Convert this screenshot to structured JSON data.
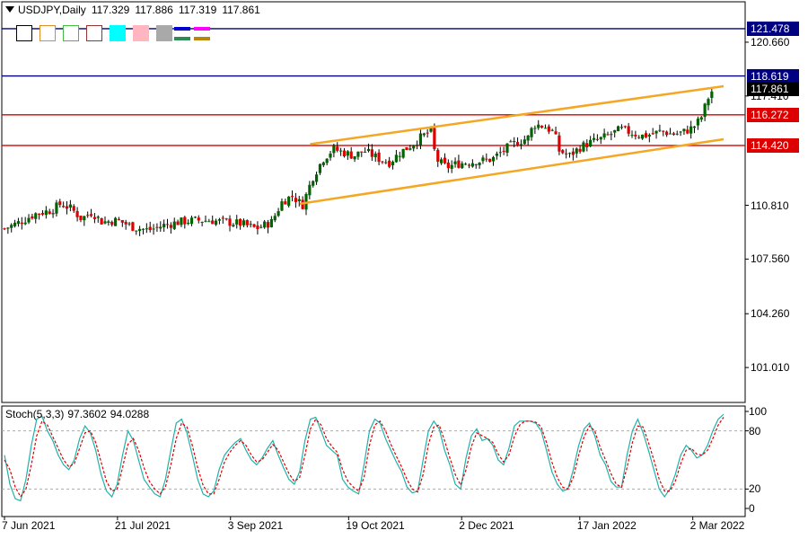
{
  "header": {
    "symbol": "USDJPY,Daily",
    "open": "117.329",
    "high": "117.886",
    "low": "117.319",
    "close": "117.861"
  },
  "swatches": [
    {
      "name": "black-box-swatch",
      "border": "#000000",
      "fill": "#ffffff"
    },
    {
      "name": "orange-box-swatch",
      "border": "#e08a2a",
      "fill": "#ffffff"
    },
    {
      "name": "green-box-swatch",
      "border": "#44bb44",
      "fill": "#ffffff"
    },
    {
      "name": "maroon-box-swatch",
      "border": "#993333",
      "fill": "#ffffff"
    },
    {
      "name": "cyan-swatch",
      "border": "#00ffff",
      "fill": "#00ffff"
    },
    {
      "name": "pink-swatch",
      "border": "#ffb6c1",
      "fill": "#ffb6c1"
    },
    {
      "name": "gray-swatch",
      "border": "#a9a9a9",
      "fill": "#a9a9a9"
    }
  ],
  "line_swatches": [
    {
      "name": "blue-line-swatch",
      "color": "#0000cc"
    },
    {
      "name": "magenta-line-swatch",
      "color": "#ff00ff"
    },
    {
      "name": "teal-line-swatch",
      "color": "#2e8b57"
    },
    {
      "name": "olive-line-swatch",
      "color": "#b8860b"
    }
  ],
  "colors": {
    "bull": "#006400",
    "bear": "#dd0000",
    "support_resistance": "#dd0000",
    "channel": "#f5a623",
    "blue_level": "#000080",
    "stoch_main": "#20b2aa",
    "stoch_signal": "#dd0000",
    "current_price_tag": "#000000"
  },
  "chart_data": [
    {
      "type": "candlestick",
      "y_axis_ticks": [
        "120.660",
        "117.410",
        "110.810",
        "107.560",
        "104.260",
        "101.010"
      ],
      "y_tick_values": [
        120.66,
        117.41,
        110.81,
        107.56,
        104.26,
        101.01
      ],
      "ylim": [
        98.9,
        123.1
      ],
      "x_axis_labels": [
        "7 Jun 2021",
        "21 Jul 2021",
        "3 Sep 2021",
        "19 Oct 2021",
        "2 Dec 2021",
        "17 Jan 2022",
        "2 Mar 2022"
      ],
      "x_label_days": [
        0,
        44,
        88,
        134,
        178,
        224,
        268
      ],
      "x_domain_days": [
        0,
        280
      ],
      "horizontal_levels": [
        {
          "value": 121.478,
          "label": "121.478",
          "color": "#000080"
        },
        {
          "value": 118.619,
          "label": "118.619",
          "color": "#000080"
        },
        {
          "value": 116.272,
          "label": "116.272",
          "color": "#dd0000"
        },
        {
          "value": 114.42,
          "label": "114.420",
          "color": "#dd0000"
        }
      ],
      "current_price": {
        "value": 117.861,
        "label": "117.861"
      },
      "channel_lines": [
        {
          "from": [
            119,
            114.5
          ],
          "to": [
            280,
            118.0
          ]
        },
        {
          "from": [
            115,
            110.9
          ],
          "to": [
            280,
            114.8
          ]
        }
      ],
      "close_path": [
        [
          0,
          109.4
        ],
        [
          6,
          109.8
        ],
        [
          12,
          110.3
        ],
        [
          18,
          110.5
        ],
        [
          22,
          110.9
        ],
        [
          26,
          110.6
        ],
        [
          30,
          110.0
        ],
        [
          34,
          110.4
        ],
        [
          38,
          109.8
        ],
        [
          44,
          109.9
        ],
        [
          50,
          109.5
        ],
        [
          56,
          109.3
        ],
        [
          62,
          109.6
        ],
        [
          68,
          109.8
        ],
        [
          74,
          109.9
        ],
        [
          80,
          109.9
        ],
        [
          86,
          109.8
        ],
        [
          92,
          109.7
        ],
        [
          98,
          109.4
        ],
        [
          104,
          109.8
        ],
        [
          108,
          111.0
        ],
        [
          112,
          111.4
        ],
        [
          116,
          110.8
        ],
        [
          120,
          112.5
        ],
        [
          124,
          113.6
        ],
        [
          128,
          114.2
        ],
        [
          132,
          114.0
        ],
        [
          136,
          113.8
        ],
        [
          140,
          114.1
        ],
        [
          146,
          113.6
        ],
        [
          150,
          113.4
        ],
        [
          154,
          114.0
        ],
        [
          158,
          114.4
        ],
        [
          162,
          114.9
        ],
        [
          166,
          115.3
        ],
        [
          168,
          113.6
        ],
        [
          172,
          113.1
        ],
        [
          176,
          113.3
        ],
        [
          180,
          113.4
        ],
        [
          186,
          113.5
        ],
        [
          190,
          113.6
        ],
        [
          194,
          114.1
        ],
        [
          198,
          114.5
        ],
        [
          204,
          114.9
        ],
        [
          206,
          115.7
        ],
        [
          210,
          115.6
        ],
        [
          214,
          115.2
        ],
        [
          216,
          114.1
        ],
        [
          220,
          113.8
        ],
        [
          224,
          114.3
        ],
        [
          228,
          114.6
        ],
        [
          232,
          114.8
        ],
        [
          236,
          115.1
        ],
        [
          240,
          115.4
        ],
        [
          244,
          115.2
        ],
        [
          248,
          115.0
        ],
        [
          252,
          115.1
        ],
        [
          256,
          115.3
        ],
        [
          260,
          115.1
        ],
        [
          264,
          115.2
        ],
        [
          268,
          115.5
        ],
        [
          271,
          116.0
        ],
        [
          274,
          117.3
        ],
        [
          276,
          117.861
        ]
      ]
    },
    {
      "type": "line",
      "title": "Stoch(5,3,3)",
      "main_value": "97.3602",
      "signal_value": "94.0288",
      "ylim": [
        0,
        100
      ],
      "y_axis_ticks": [
        "100",
        "80",
        "20",
        "0"
      ],
      "y_tick_values": [
        100,
        80,
        20,
        0
      ],
      "levels": [
        80,
        20
      ],
      "series": [
        {
          "values": [
            55,
            25,
            10,
            8,
            30,
            65,
            92,
            95,
            80,
            70,
            55,
            45,
            40,
            50,
            72,
            85,
            78,
            60,
            35,
            18,
            12,
            25,
            55,
            80,
            70,
            50,
            30,
            22,
            15,
            12,
            30,
            60,
            88,
            92,
            78,
            55,
            30,
            15,
            12,
            18,
            40,
            55,
            62,
            68,
            72,
            60,
            50,
            45,
            52,
            62,
            70,
            55,
            42,
            30,
            25,
            38,
            70,
            92,
            94,
            80,
            65,
            60,
            55,
            30,
            22,
            18,
            15,
            45,
            80,
            92,
            88,
            72,
            60,
            48,
            38,
            22,
            16,
            18,
            50,
            80,
            90,
            82,
            60,
            45,
            25,
            20,
            52,
            75,
            82,
            70,
            72,
            65,
            50,
            45,
            62,
            85,
            90,
            90,
            90,
            88,
            80,
            60,
            38,
            25,
            18,
            20,
            40,
            65,
            82,
            88,
            75,
            55,
            45,
            28,
            22,
            22,
            55,
            80,
            92,
            78,
            60,
            40,
            20,
            12,
            20,
            35,
            55,
            65,
            60,
            52,
            55,
            65,
            80,
            92,
            97
          ]
        },
        {
          "values": [
            50,
            40,
            22,
            12,
            20,
            45,
            75,
            90,
            86,
            74,
            62,
            50,
            43,
            46,
            62,
            78,
            80,
            68,
            48,
            28,
            18,
            20,
            42,
            66,
            72,
            60,
            42,
            28,
            20,
            15,
            22,
            45,
            72,
            88,
            84,
            65,
            42,
            24,
            15,
            15,
            30,
            48,
            58,
            65,
            70,
            65,
            55,
            48,
            50,
            58,
            66,
            60,
            48,
            36,
            28,
            32,
            55,
            82,
            92,
            86,
            72,
            64,
            58,
            40,
            28,
            22,
            18,
            32,
            65,
            86,
            90,
            80,
            66,
            54,
            43,
            30,
            20,
            17,
            35,
            66,
            84,
            86,
            70,
            52,
            35,
            24,
            40,
            64,
            78,
            75,
            72,
            68,
            56,
            48,
            55,
            74,
            86,
            90,
            90,
            89,
            84,
            68,
            48,
            32,
            22,
            20,
            32,
            55,
            74,
            85,
            80,
            63,
            50,
            36,
            25,
            22,
            42,
            68,
            85,
            84,
            68,
            50,
            30,
            18,
            18,
            28,
            46,
            60,
            62,
            56,
            55,
            60,
            72,
            86,
            94
          ]
        }
      ]
    }
  ]
}
